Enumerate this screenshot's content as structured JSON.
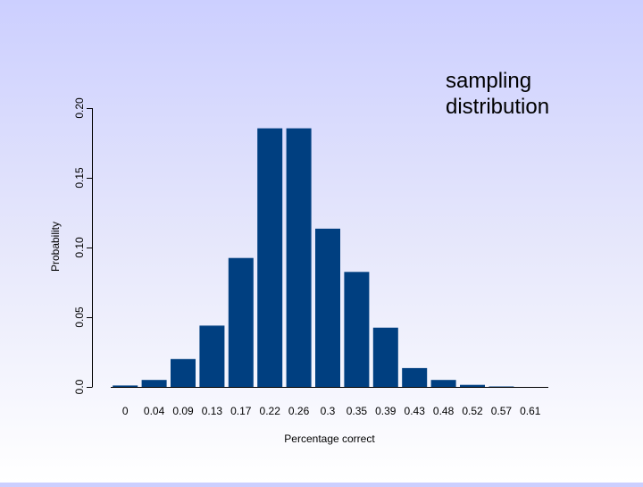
{
  "annotation": {
    "line1": "sampling",
    "line2": "distribution"
  },
  "colors": {
    "bar": "#003f80",
    "axis": "#000000"
  },
  "chart_data": {
    "type": "bar",
    "title": "",
    "xlabel": "Percentage correct",
    "ylabel": "Probability",
    "categories": [
      "0",
      "0.04",
      "0.09",
      "0.13",
      "0.17",
      "0.22",
      "0.26",
      "0.3",
      "0.35",
      "0.39",
      "0.43",
      "0.48",
      "0.52",
      "0.57",
      "0.61"
    ],
    "values": [
      0.001,
      0.005,
      0.02,
      0.044,
      0.0925,
      0.1855,
      0.1855,
      0.1135,
      0.0825,
      0.0425,
      0.0135,
      0.005,
      0.0015,
      0.0003,
      0.0
    ],
    "ylim": [
      0,
      0.2
    ],
    "yticks": [
      {
        "value": 0.0,
        "label": "0.0"
      },
      {
        "value": 0.05,
        "label": "0.05"
      },
      {
        "value": 0.1,
        "label": "0.10"
      },
      {
        "value": 0.15,
        "label": "0.15"
      },
      {
        "value": 0.2,
        "label": "0.20"
      }
    ],
    "grid": false,
    "legend": "none"
  }
}
